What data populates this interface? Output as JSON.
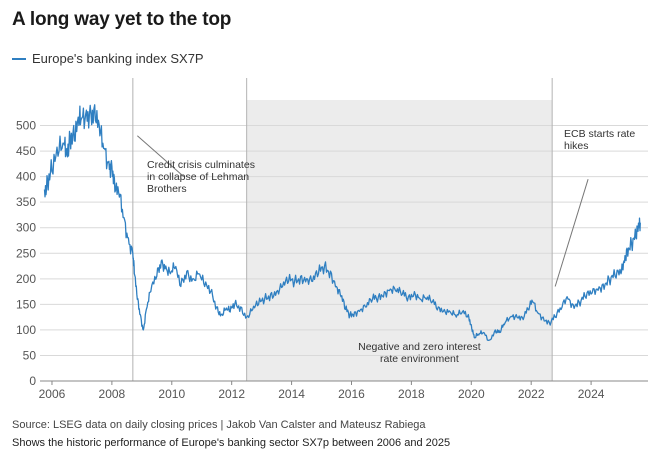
{
  "title": "A long way yet to the top",
  "legend_label": "Europe's banking index SX7P",
  "source": "Source: LSEG data on daily closing prices | Jakob Van Calster and Mateusz Rabiega",
  "caption": "Shows the historic performance of Europe's banking sector SX7p between 2006 and 2025",
  "colors": {
    "series": "#2f7fc1",
    "grid": "#d9d9d9",
    "shade": "#ececec",
    "vline": "#b3b3b3",
    "annotation_line": "#777777"
  },
  "chart_data": {
    "type": "line",
    "title": "A long way yet to the top",
    "xlabel": "",
    "ylabel": "",
    "xlim": [
      2005.6,
      2025.9
    ],
    "ylim": [
      0,
      550
    ],
    "yticks": [
      0,
      50,
      100,
      150,
      200,
      250,
      300,
      350,
      400,
      450,
      500
    ],
    "xticks": [
      2006,
      2008,
      2010,
      2012,
      2014,
      2016,
      2018,
      2020,
      2022,
      2024
    ],
    "grid": true,
    "series": [
      {
        "name": "Europe's banking index SX7P",
        "x": [
          2005.75,
          2005.85,
          2006.0,
          2006.2,
          2006.4,
          2006.5,
          2006.6,
          2006.75,
          2006.9,
          2007.0,
          2007.15,
          2007.3,
          2007.45,
          2007.6,
          2007.75,
          2007.9,
          2008.0,
          2008.1,
          2008.25,
          2008.4,
          2008.55,
          2008.7,
          2008.75,
          2008.85,
          2008.95,
          2009.05,
          2009.15,
          2009.3,
          2009.5,
          2009.65,
          2009.8,
          2009.95,
          2010.1,
          2010.3,
          2010.5,
          2010.7,
          2010.9,
          2011.1,
          2011.3,
          2011.5,
          2011.65,
          2011.8,
          2011.95,
          2012.1,
          2012.3,
          2012.5,
          2012.7,
          2012.9,
          2013.1,
          2013.3,
          2013.5,
          2013.7,
          2013.9,
          2014.1,
          2014.3,
          2014.5,
          2014.7,
          2014.9,
          2015.1,
          2015.3,
          2015.5,
          2015.65,
          2015.8,
          2015.95,
          2016.1,
          2016.3,
          2016.5,
          2016.7,
          2016.9,
          2017.1,
          2017.3,
          2017.5,
          2017.7,
          2017.9,
          2018.1,
          2018.3,
          2018.5,
          2018.7,
          2018.9,
          2019.1,
          2019.3,
          2019.5,
          2019.7,
          2019.9,
          2020.0,
          2020.1,
          2020.25,
          2020.4,
          2020.6,
          2020.8,
          2020.95,
          2021.1,
          2021.3,
          2021.5,
          2021.7,
          2021.9,
          2022.05,
          2022.2,
          2022.4,
          2022.6,
          2022.8,
          2023.0,
          2023.2,
          2023.4,
          2023.6,
          2023.8,
          2024.0,
          2024.2,
          2024.4,
          2024.6,
          2024.8,
          2025.0,
          2025.1,
          2025.2,
          2025.35,
          2025.5,
          2025.6,
          2025.65
        ],
        "values": [
          375,
          395,
          410,
          440,
          465,
          455,
          480,
          470,
          500,
          515,
          530,
          525,
          510,
          480,
          455,
          430,
          420,
          370,
          360,
          320,
          280,
          250,
          210,
          160,
          130,
          100,
          140,
          175,
          205,
          235,
          225,
          210,
          220,
          185,
          215,
          200,
          210,
          185,
          175,
          145,
          130,
          140,
          135,
          150,
          145,
          125,
          140,
          150,
          160,
          170,
          175,
          185,
          195,
          195,
          205,
          200,
          195,
          210,
          225,
          215,
          185,
          165,
          140,
          130,
          135,
          140,
          145,
          160,
          165,
          175,
          180,
          175,
          170,
          165,
          175,
          160,
          160,
          155,
          145,
          140,
          135,
          125,
          135,
          130,
          110,
          85,
          90,
          95,
          80,
          100,
          95,
          110,
          125,
          130,
          125,
          140,
          155,
          135,
          125,
          115,
          125,
          140,
          165,
          150,
          155,
          165,
          170,
          180,
          190,
          200,
          205,
          210,
          235,
          260,
          270,
          280,
          300,
          310
        ]
      }
    ],
    "shaded_region": {
      "x_start": 2012.5,
      "x_end": 2022.7,
      "label": "Negative and zero interest rate environment"
    },
    "reference_lines": [
      2008.7,
      2012.5,
      2022.7
    ],
    "annotations": [
      {
        "lines": [
          "Credit crisis culminates",
          "in collapse of Lehman",
          "Brothers"
        ],
        "arrow_from": [
          2008.85,
          480
        ],
        "arrow_to": [
          2010.4,
          400
        ]
      },
      {
        "lines": [
          "ECB starts rate",
          "hikes"
        ],
        "arrow_from": [
          2022.8,
          185
        ],
        "arrow_to": [
          2023.9,
          395
        ]
      }
    ]
  }
}
